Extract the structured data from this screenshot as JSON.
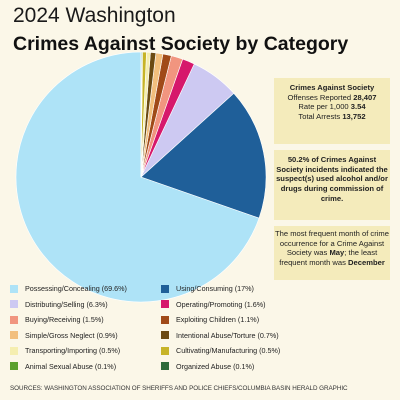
{
  "header": {
    "year_title": "2024 Washington",
    "main_title": "Crimes Against Society by Category"
  },
  "info_boxes": {
    "box1": {
      "heading": "Crimes Against Society",
      "line1_label": "Offenses Reported",
      "line1_value": "28,407",
      "line2_label": "Rate per 1,000",
      "line2_value": "3.54",
      "line3_label": "Total Arrests",
      "line3_value": "13,752"
    },
    "box2": {
      "text": "50.2% of Crimes Against Society incidents indicated the suspect(s) used alcohol and/or drugs during commission of crime."
    },
    "box3": {
      "text_a": "The most frequent month of crime occurrence for a Crime Against Society was",
      "month_most": "May",
      "text_b": "; the least frequent month was",
      "month_least": "December"
    }
  },
  "chart_data": {
    "type": "pie",
    "start_angle_deg": -90,
    "direction": "counterclockwise",
    "slices": [
      {
        "label": "Possessing/Concealing (69.6%)",
        "value": 69.6,
        "color": "#aee3f7"
      },
      {
        "label": "Using/Consuming (17%)",
        "value": 17.0,
        "color": "#1f5f99"
      },
      {
        "label": "Distributing/Selling (6.3%)",
        "value": 6.3,
        "color": "#cdc9f2"
      },
      {
        "label": "Operating/Promoting (1.6%)",
        "value": 1.6,
        "color": "#d6186b"
      },
      {
        "label": "Buying/Receiving (1.5%)",
        "value": 1.5,
        "color": "#f1957f"
      },
      {
        "label": "Exploiting Children (1.1%)",
        "value": 1.1,
        "color": "#a04a18"
      },
      {
        "label": "Simple/Gross Neglect (0.9%)",
        "value": 0.9,
        "color": "#f2bf7d"
      },
      {
        "label": "Intentional Abuse/Torture (0.7%)",
        "value": 0.7,
        "color": "#6b4a12"
      },
      {
        "label": "Transporting/Importing (0.5%)",
        "value": 0.5,
        "color": "#f5eeb0"
      },
      {
        "label": "Cultivating/Manufacturing (0.5%)",
        "value": 0.5,
        "color": "#c7b428"
      },
      {
        "label": "Animal Sexual Abuse (0.1%)",
        "value": 0.1,
        "color": "#5ba02e"
      },
      {
        "label": "Organized Abuse (0.1%)",
        "value": 0.1,
        "color": "#2e6b3a"
      }
    ]
  },
  "footer": {
    "sources": "SOURCES: WASHINGTON ASSOCIATION OF SHERIFFS AND POLICE CHIEFS/COLUMBIA BASIN HERALD GRAPHIC"
  }
}
